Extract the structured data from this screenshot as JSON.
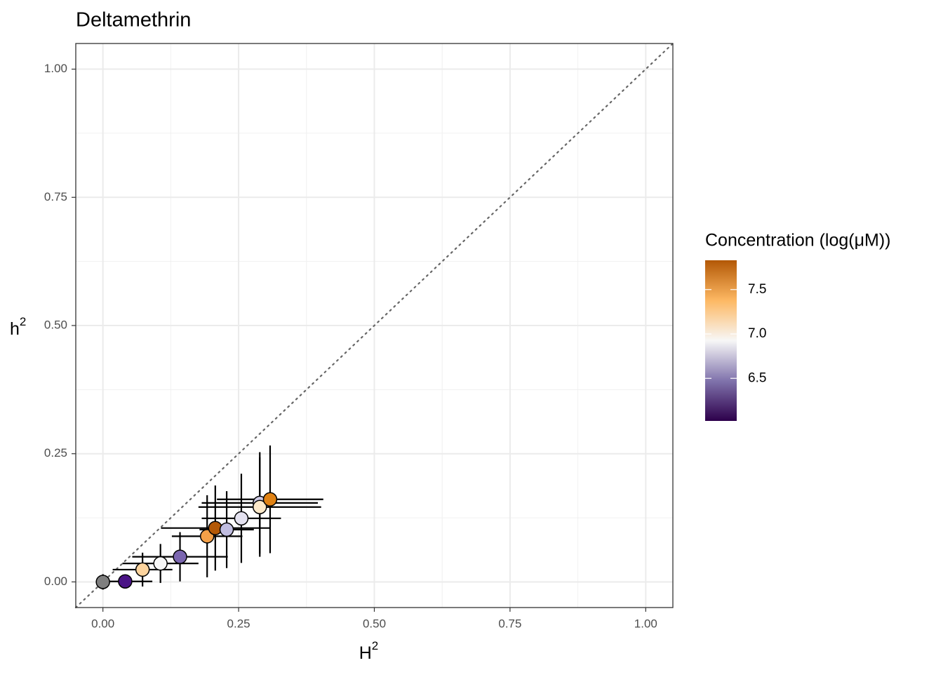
{
  "chart_data": {
    "type": "scatter",
    "title": "Deltamethrin",
    "xlabel": "H",
    "xlabel_sup": "2",
    "ylabel": "h",
    "ylabel_sup": "2",
    "x": [
      0,
      0.041,
      0.073,
      0.106,
      0.142,
      0.192,
      0.207,
      0.228,
      0.255,
      0.289,
      0.289,
      0.308
    ],
    "values": [
      0,
      0.001,
      0.024,
      0.036,
      0.049,
      0.089,
      0.105,
      0.102,
      0.124,
      0.154,
      0.146,
      0.161
    ],
    "xerr": [
      0,
      0.05,
      0.055,
      0.07,
      0.088,
      0.065,
      0.1,
      0.05,
      0.073,
      0.107,
      0.113,
      0.098
    ],
    "yerr": [
      0.015,
      0.01,
      0.033,
      0.038,
      0.048,
      0.08,
      0.083,
      0.075,
      0.087,
      0.099,
      0.097,
      0.105
    ],
    "colors": [
      "#7f7f7f",
      "#4a1486",
      "#fdd49e",
      "#f7f7f7",
      "#7b66b0",
      "#f4a048",
      "#b35806",
      "#c0bde0",
      "#e4e2f0",
      "#cfcbe5",
      "#fde9c9",
      "#e08214"
    ],
    "xlim": [
      -0.05,
      1.05
    ],
    "ylim": [
      -0.05,
      1.05
    ],
    "xticks": [
      {
        "value": 0,
        "label": "0.00"
      },
      {
        "value": 0.25,
        "label": "0.25"
      },
      {
        "value": 0.5,
        "label": "0.50"
      },
      {
        "value": 0.75,
        "label": "0.75"
      },
      {
        "value": 1,
        "label": "1.00"
      }
    ],
    "yticks": [
      {
        "value": 0,
        "label": "0.00"
      },
      {
        "value": 0.25,
        "label": "0.25"
      },
      {
        "value": 0.5,
        "label": "0.50"
      },
      {
        "value": 0.75,
        "label": "0.75"
      },
      {
        "value": 1,
        "label": "1.00"
      }
    ],
    "grid": true,
    "diagonal": true,
    "colorbar": {
      "title": "Concentration (log(μM))",
      "lim": [
        6.02,
        7.83
      ],
      "ticks": [
        6.5,
        {
          "value": 7,
          "label": "7.0"
        },
        7.5
      ],
      "colors": [
        "#2d004b",
        "#8073ac",
        "#f7f7f7",
        "#fdb863",
        "#b35806"
      ]
    }
  }
}
